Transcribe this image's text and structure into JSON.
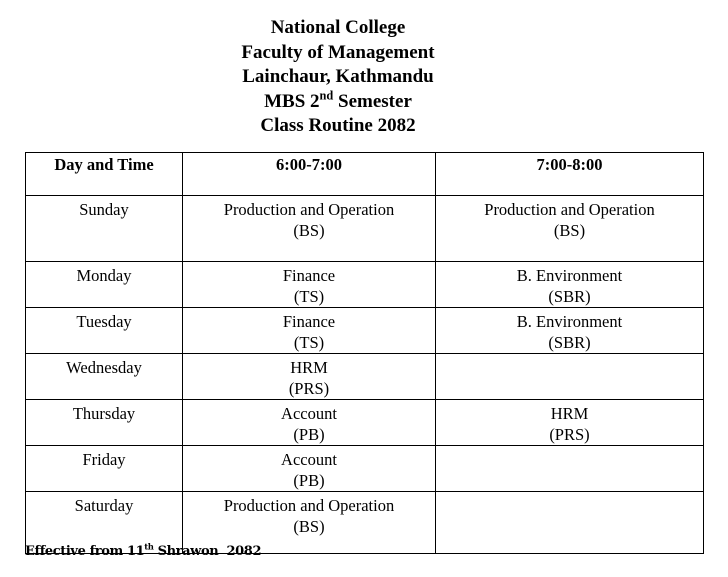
{
  "header": {
    "lines": [
      "National College",
      "Faculty of Management",
      "Lainchaur, Kathmandu",
      {
        "text": "MBS 2",
        "sup": "nd",
        "rest": "Semester"
      },
      "Class Routine 2082"
    ]
  },
  "table": {
    "columns": [
      "Day and Time",
      "6:00-7:00",
      "7:00-8:00"
    ],
    "rows": [
      {
        "day": "Sunday",
        "slots": [
          [
            "Production and Operation",
            "(BS)"
          ],
          [
            "Production and Operation",
            "(BS)"
          ]
        ]
      },
      {
        "day": "Monday",
        "slots": [
          [
            "Finance",
            "(TS)"
          ],
          [
            "B. Environment",
            "(SBR)"
          ]
        ]
      },
      {
        "day": "Tuesday",
        "slots": [
          [
            "Finance",
            "(TS)"
          ],
          [
            "B. Environment",
            "(SBR)"
          ]
        ]
      },
      {
        "day": "Wednesday",
        "slots": [
          [
            "HRM",
            "(PRS)"
          ],
          []
        ]
      },
      {
        "day": "Thursday",
        "slots": [
          [
            "Account",
            "(PB)"
          ],
          [
            "HRM",
            "(PRS)"
          ]
        ]
      },
      {
        "day": "Friday",
        "slots": [
          [
            "Account",
            "(PB)"
          ],
          []
        ]
      },
      {
        "day": "Saturday",
        "slots": [
          [
            "Production and Operation",
            "(BS)"
          ],
          []
        ]
      }
    ]
  },
  "footer": {
    "text": "Effective from 11",
    "sup": "th",
    "rest": "Shrawon  2082"
  }
}
